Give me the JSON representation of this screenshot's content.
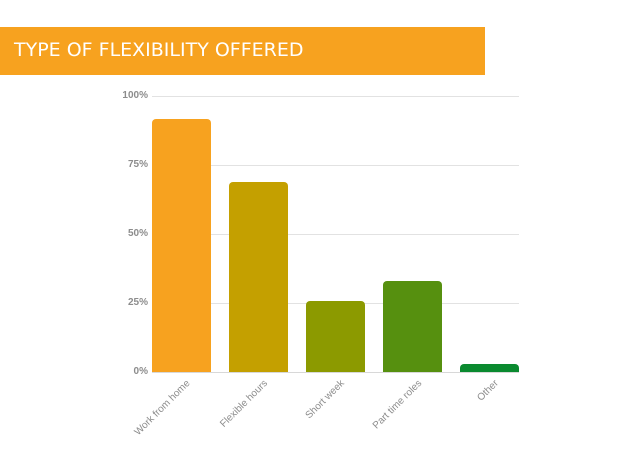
{
  "header": {
    "title": "TYPE OF FLEXIBILITY OFFERED",
    "background": "#f7a21f"
  },
  "chart_data": {
    "type": "bar",
    "title": "TYPE OF FLEXIBILITY OFFERED",
    "xlabel": "",
    "ylabel": "",
    "categories": [
      "Work from home",
      "Flexible hours",
      "Short week",
      "Part time roles",
      "Other"
    ],
    "values": [
      92,
      69,
      26,
      33,
      3
    ],
    "colors": [
      "#f7a21f",
      "#c4a000",
      "#8c9a00",
      "#56900f",
      "#0a8a2f"
    ],
    "ylim": [
      0,
      100
    ],
    "yticks": [
      "0%",
      "25%",
      "50%",
      "75%",
      "100%"
    ],
    "grid": true,
    "legend": "none"
  }
}
